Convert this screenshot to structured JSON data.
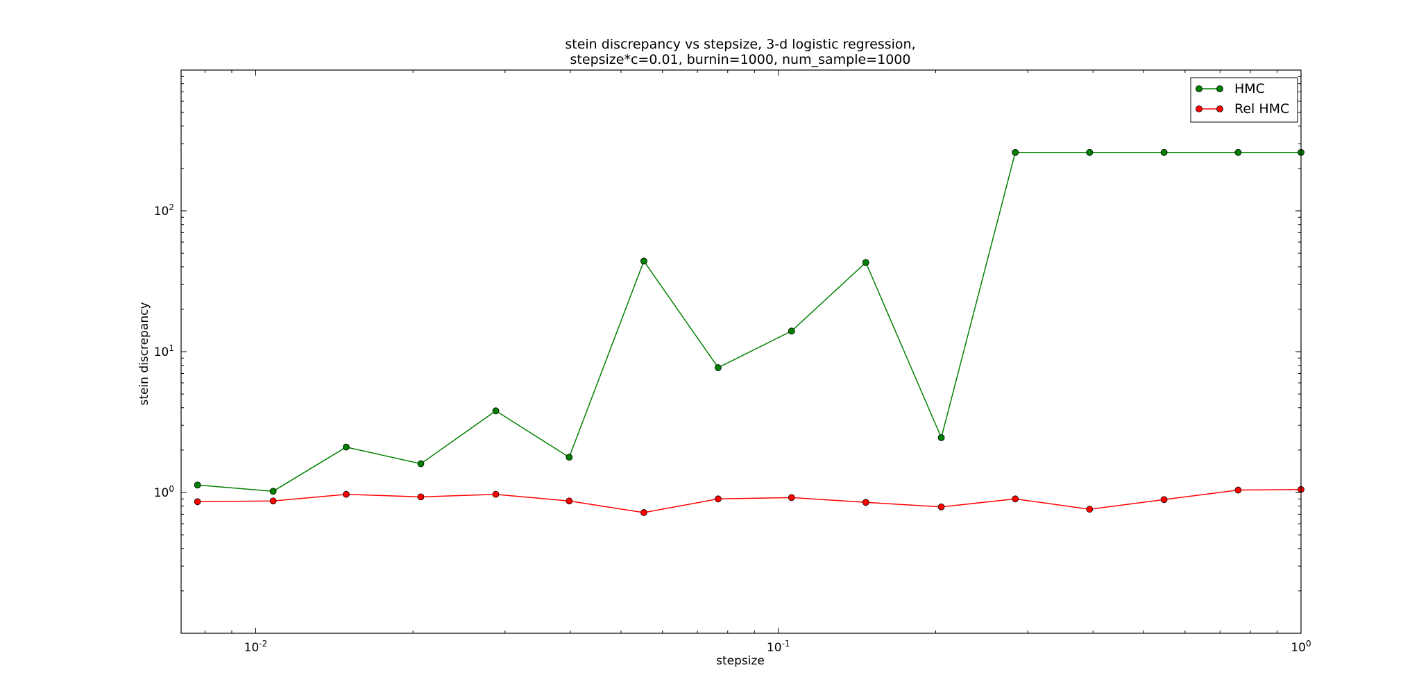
{
  "chart_data": {
    "type": "line",
    "title": "stein discrepancy vs stepsize, 3-d logistic regression,",
    "subtitle": "stepsize*c=0.01, burnin=1000, num_sample=1000",
    "xlabel": "stepsize",
    "ylabel": "stein discrepancy",
    "xscale": "log",
    "yscale": "log",
    "xlim": [
      0.0072,
      1.0
    ],
    "ylim": [
      0.1,
      1000
    ],
    "xticks": [
      {
        "value": 0.01,
        "base": "10",
        "exp": "-2"
      },
      {
        "value": 0.1,
        "base": "10",
        "exp": "-1"
      },
      {
        "value": 1.0,
        "base": "10",
        "exp": "0"
      }
    ],
    "yticks": [
      {
        "value": 1,
        "base": "10",
        "exp": "0"
      },
      {
        "value": 10,
        "base": "10",
        "exp": "1"
      },
      {
        "value": 100,
        "base": "10",
        "exp": "2"
      }
    ],
    "legend_position": "top-right",
    "grid": false,
    "x": [
      0.00774,
      0.0108,
      0.0149,
      0.0207,
      0.0288,
      0.0398,
      0.0553,
      0.0767,
      0.106,
      0.147,
      0.205,
      0.284,
      0.394,
      0.547,
      0.758,
      1.0
    ],
    "series": [
      {
        "name": "HMC",
        "color": "#008000",
        "values": [
          1.13,
          1.02,
          2.1,
          1.6,
          3.8,
          1.78,
          44,
          7.7,
          14,
          43,
          2.45,
          260,
          260,
          260,
          260,
          260
        ]
      },
      {
        "name": "Rel HMC",
        "color": "#ff0000",
        "values": [
          0.86,
          0.87,
          0.97,
          0.93,
          0.97,
          0.87,
          0.72,
          0.9,
          0.92,
          0.85,
          0.79,
          0.9,
          0.76,
          0.89,
          1.04,
          1.05
        ]
      }
    ]
  }
}
